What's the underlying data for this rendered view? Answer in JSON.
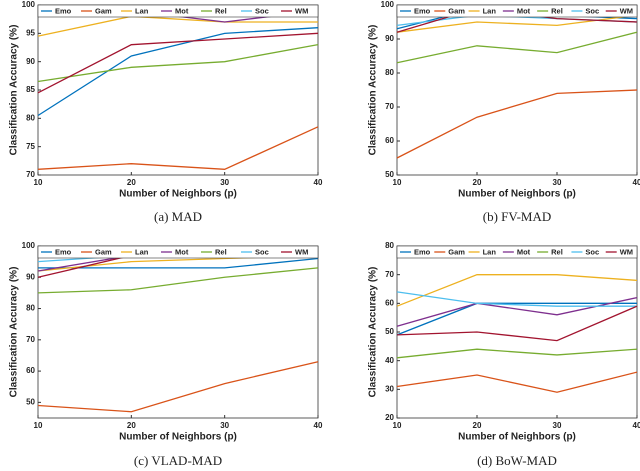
{
  "chart_data": [
    {
      "type": "line",
      "caption": "(a) MAD",
      "xlabel": "Number of Neighbors (p)",
      "ylabel": "Classification Accuracy (%)",
      "x": [
        10,
        20,
        30,
        40
      ],
      "xlim": [
        10,
        40
      ],
      "xticks": [
        10,
        20,
        30,
        40
      ],
      "ylim": [
        70,
        100
      ],
      "yticks": [
        70,
        75,
        80,
        85,
        90,
        95,
        100
      ],
      "series": [
        {
          "name": "Emo",
          "color": "#0072bd",
          "values": [
            80.5,
            91,
            95,
            96
          ]
        },
        {
          "name": "Gam",
          "color": "#d95319",
          "values": [
            71,
            72,
            71,
            78.5
          ]
        },
        {
          "name": "Lan",
          "color": "#edb120",
          "values": [
            94.5,
            98,
            97,
            97
          ]
        },
        {
          "name": "Mot",
          "color": "#7e2f8e",
          "values": [
            99,
            99,
            97,
            99
          ]
        },
        {
          "name": "Rel",
          "color": "#77ac30",
          "values": [
            86.5,
            89,
            90,
            93
          ]
        },
        {
          "name": "Soc",
          "color": "#4dbeee",
          "values": [
            98,
            99,
            99,
            99
          ]
        },
        {
          "name": "WM",
          "color": "#a2142f",
          "values": [
            84.5,
            93,
            94,
            95
          ]
        }
      ]
    },
    {
      "type": "line",
      "caption": "(b) FV-MAD",
      "xlabel": "Number of Neighbors (p)",
      "ylabel": "Classification Accuracy (%)",
      "x": [
        10,
        20,
        30,
        40
      ],
      "xlim": [
        10,
        40
      ],
      "xticks": [
        10,
        20,
        30,
        40
      ],
      "ylim": [
        50,
        100
      ],
      "yticks": [
        50,
        60,
        70,
        80,
        90,
        100
      ],
      "series": [
        {
          "name": "Emo",
          "color": "#0072bd",
          "values": [
            93,
            99,
            97,
            96
          ]
        },
        {
          "name": "Gam",
          "color": "#d95319",
          "values": [
            55,
            67,
            74,
            75
          ]
        },
        {
          "name": "Lan",
          "color": "#edb120",
          "values": [
            92,
            95,
            94,
            97
          ]
        },
        {
          "name": "Mot",
          "color": "#7e2f8e",
          "values": [
            97,
            99,
            98,
            97
          ]
        },
        {
          "name": "Rel",
          "color": "#77ac30",
          "values": [
            83,
            88,
            86,
            92
          ]
        },
        {
          "name": "Soc",
          "color": "#4dbeee",
          "values": [
            94,
            97,
            96,
            95
          ]
        },
        {
          "name": "WM",
          "color": "#a2142f",
          "values": [
            92,
            99,
            96,
            95
          ]
        }
      ]
    },
    {
      "type": "line",
      "caption": "(c) VLAD-MAD",
      "xlabel": "Number of Neighbors (p)",
      "ylabel": "Classification Accuracy (%)",
      "x": [
        10,
        20,
        30,
        40
      ],
      "xlim": [
        10,
        40
      ],
      "xticks": [
        10,
        20,
        30,
        40
      ],
      "ylim": [
        45,
        100
      ],
      "yticks": [
        50,
        60,
        70,
        80,
        90,
        100
      ],
      "series": [
        {
          "name": "Emo",
          "color": "#0072bd",
          "values": [
            93,
            93,
            93,
            96
          ]
        },
        {
          "name": "Gam",
          "color": "#d95319",
          "values": [
            49,
            47,
            56,
            63
          ]
        },
        {
          "name": "Lan",
          "color": "#edb120",
          "values": [
            92,
            95,
            96,
            97
          ]
        },
        {
          "name": "Mot",
          "color": "#7e2f8e",
          "values": [
            92,
            97,
            99,
            99
          ]
        },
        {
          "name": "Rel",
          "color": "#77ac30",
          "values": [
            85,
            86,
            90,
            93
          ]
        },
        {
          "name": "Soc",
          "color": "#4dbeee",
          "values": [
            95,
            97,
            97,
            98
          ]
        },
        {
          "name": "WM",
          "color": "#a2142f",
          "values": [
            90,
            97,
            97,
            98
          ]
        }
      ]
    },
    {
      "type": "line",
      "caption": "(d) BoW-MAD",
      "xlabel": "Number of Neighbors (p)",
      "ylabel": "Classification Accuracy (%)",
      "x": [
        10,
        20,
        30,
        40
      ],
      "xlim": [
        10,
        40
      ],
      "xticks": [
        10,
        20,
        30,
        40
      ],
      "ylim": [
        20,
        80
      ],
      "yticks": [
        20,
        30,
        40,
        50,
        60,
        70,
        80
      ],
      "series": [
        {
          "name": "Emo",
          "color": "#0072bd",
          "values": [
            49,
            60,
            60,
            60
          ]
        },
        {
          "name": "Gam",
          "color": "#d95319",
          "values": [
            31,
            35,
            29,
            36
          ]
        },
        {
          "name": "Lan",
          "color": "#edb120",
          "values": [
            59,
            70,
            70,
            68
          ]
        },
        {
          "name": "Mot",
          "color": "#7e2f8e",
          "values": [
            52,
            60,
            56,
            62
          ]
        },
        {
          "name": "Rel",
          "color": "#77ac30",
          "values": [
            41,
            44,
            42,
            44
          ]
        },
        {
          "name": "Soc",
          "color": "#4dbeee",
          "values": [
            64,
            60,
            59,
            59
          ]
        },
        {
          "name": "WM",
          "color": "#a2142f",
          "values": [
            49,
            50,
            47,
            59
          ]
        }
      ]
    }
  ]
}
